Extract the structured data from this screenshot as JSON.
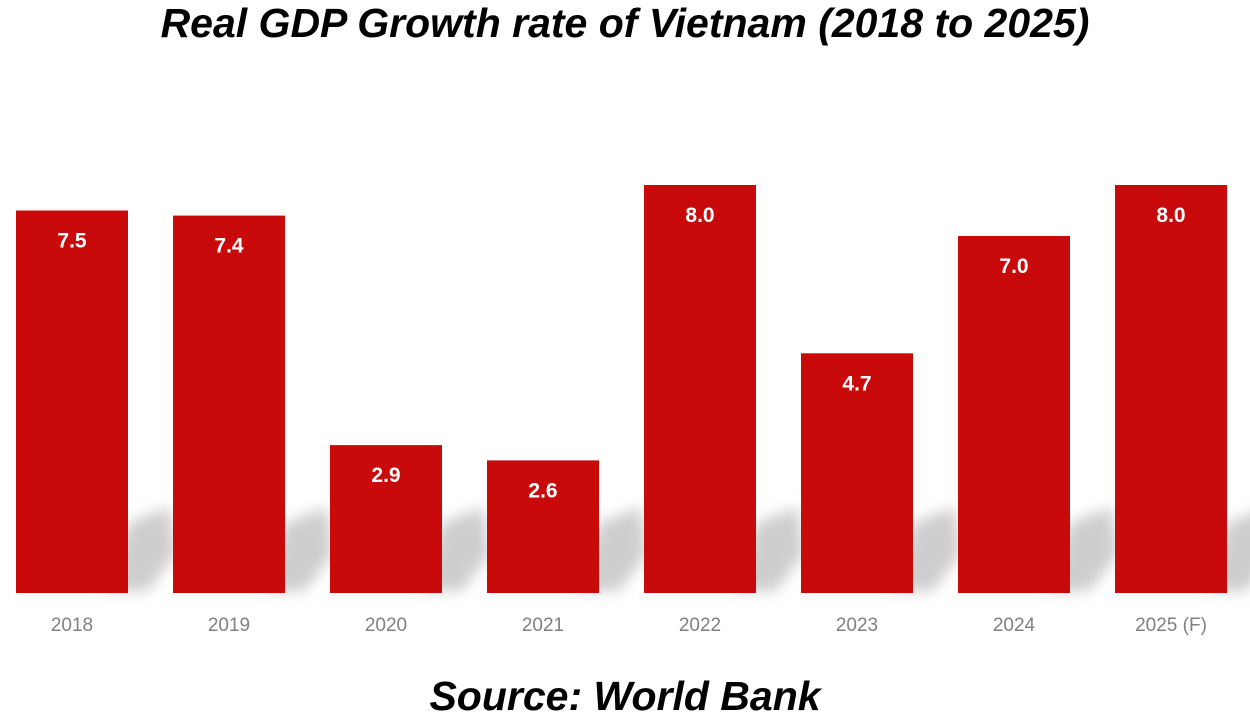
{
  "chart_data": {
    "type": "bar",
    "title": "Real GDP Growth rate of Vietnam (2018 to 2025)",
    "source": "Source: World Bank",
    "categories": [
      "2018",
      "2019",
      "2020",
      "2021",
      "2022",
      "2023",
      "2024",
      "2025 (F)"
    ],
    "values": [
      7.5,
      7.4,
      2.9,
      2.6,
      8.0,
      4.7,
      7.0,
      8.0
    ],
    "value_labels": [
      "7.5",
      "7.4",
      "2.9",
      "2.6",
      "8.0",
      "4.7",
      "7.0",
      "8.0"
    ],
    "xlabel": "",
    "ylabel": "",
    "ylim": [
      0,
      8.0
    ],
    "grid": false,
    "legend": "none",
    "colors": {
      "bar": "#c80a0a",
      "value_label": "#ffffff",
      "tick_label": "#808080",
      "shadow": "#bdbdbd"
    }
  }
}
